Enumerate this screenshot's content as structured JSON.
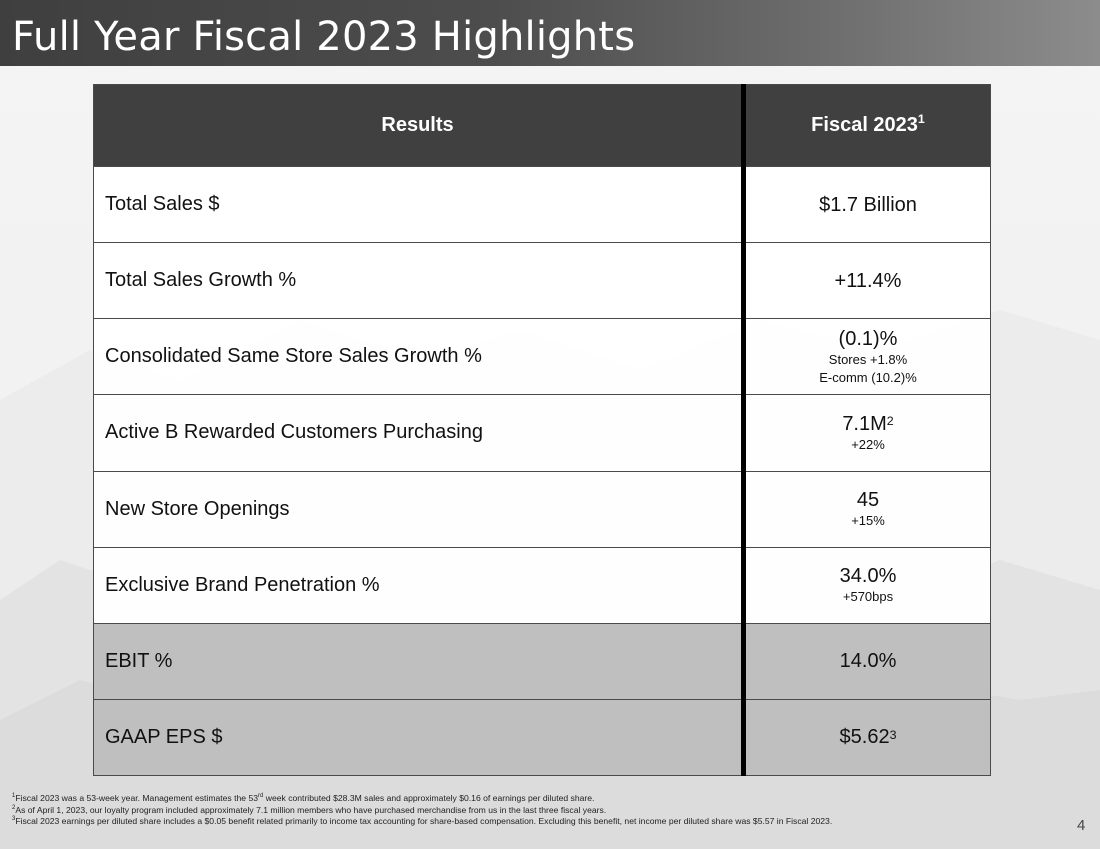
{
  "slide": {
    "title": "Full Year Fiscal 2023 Highlights",
    "page_number": "4"
  },
  "table": {
    "headers": {
      "results": "Results",
      "fiscal_text": "Fiscal 2023",
      "fiscal_sup": "1"
    },
    "rows": [
      {
        "label": "Total Sales $",
        "value": "$1.7 Billion"
      },
      {
        "label": "Total Sales Growth %",
        "value": "+11.4%"
      },
      {
        "label": "Consolidated Same Store Sales Growth %",
        "value": "(0.1)%",
        "sub1": "Stores +1.8%",
        "sub2": "E-comm (10.2)%"
      },
      {
        "label": "Active B Rewarded Customers Purchasing",
        "value": "7.1M",
        "value_sup": "2",
        "sub1": "+22%"
      },
      {
        "label": "New Store Openings",
        "value": "45",
        "sub1": "+15%"
      },
      {
        "label": "Exclusive Brand Penetration %",
        "value": "34.0%",
        "sub1": "+570bps"
      },
      {
        "label": "EBIT %",
        "value": "14.0%"
      },
      {
        "label": "GAAP EPS $",
        "value": "$5.62",
        "value_sup": "3"
      }
    ]
  },
  "footnotes": [
    {
      "marker": "1",
      "pre": "Fiscal 2023 was a 53-week year. Management estimates the 53",
      "ord": "rd",
      "post": " week contributed $28.3M sales and approximately $0.16 of earnings per diluted share."
    },
    {
      "marker": "2",
      "text": "As of April 1, 2023, our loyalty program included approximately 7.1 million members who have purchased merchandise from us in the last three fiscal years."
    },
    {
      "marker": "3",
      "text": "Fiscal 2023 earnings per diluted share includes a $0.05 benefit related primarily to income tax accounting for share-based compensation. Excluding this benefit, net income per diluted share was $5.57 in Fiscal 2023."
    }
  ],
  "colors": {
    "title_bar": "#4d4d4d",
    "header_bg": "#404040",
    "highlight_rows": "#bfbfbf",
    "divider": "#000000"
  }
}
